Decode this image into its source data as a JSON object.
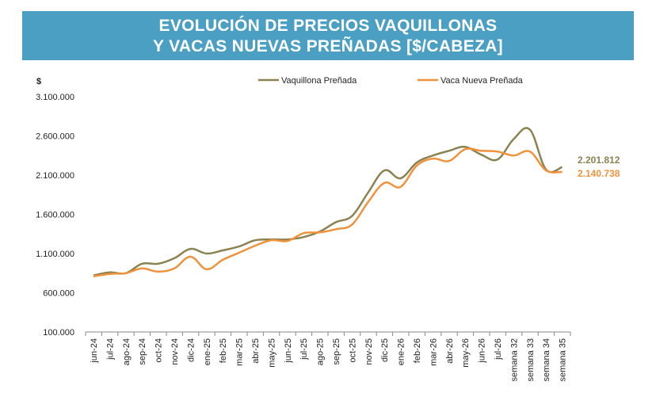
{
  "title_line1": "EVOLUCIÓN DE PRECIOS VAQUILLONAS",
  "title_line2": "Y VACAS NUEVAS PREÑADAS [$/CABEZA]",
  "chart_data": {
    "type": "line",
    "title": "EVOLUCIÓN DE PRECIOS VAQUILLONAS Y VACAS NUEVAS PREÑADAS [$/CABEZA]",
    "ylabel": "$",
    "xlabel": "",
    "ylim": [
      100000,
      3100000
    ],
    "yticks": [
      100000,
      600000,
      1100000,
      1600000,
      2100000,
      2600000,
      3100000
    ],
    "ytick_labels": [
      "100.000",
      "600.000",
      "1.100.000",
      "1.600.000",
      "2.100.000",
      "2.600.000",
      "3.100.000"
    ],
    "grid": false,
    "legend_position": "top",
    "categories": [
      "jun-24",
      "jul-24",
      "ago-24",
      "sep-24",
      "oct-24",
      "nov-24",
      "dic-24",
      "ene-25",
      "feb-25",
      "mar-25",
      "abr-25",
      "may-25",
      "jun-25",
      "jul-25",
      "ago-25",
      "sep-25",
      "oct-25",
      "nov-25",
      "dic-25",
      "ene-26",
      "feb-26",
      "mar-26",
      "abr-26",
      "may-26",
      "jun-26",
      "jul-26",
      "semana 32",
      "semana 33",
      "semana 34",
      "semana 35"
    ],
    "series": [
      {
        "name": "Vaquillona Preñada",
        "color": "#8a8250",
        "values": [
          820000,
          860000,
          850000,
          970000,
          970000,
          1040000,
          1160000,
          1100000,
          1140000,
          1190000,
          1270000,
          1280000,
          1280000,
          1310000,
          1380000,
          1500000,
          1580000,
          1880000,
          2160000,
          2060000,
          2260000,
          2350000,
          2410000,
          2460000,
          2360000,
          2300000,
          2560000,
          2680000,
          2170000,
          2201812
        ],
        "end_label": "2.201.812"
      },
      {
        "name": "Vaca Nueva Preñada",
        "color": "#f0923c",
        "values": [
          810000,
          840000,
          850000,
          910000,
          870000,
          910000,
          1060000,
          900000,
          1020000,
          1110000,
          1200000,
          1270000,
          1260000,
          1360000,
          1370000,
          1410000,
          1470000,
          1760000,
          2000000,
          1950000,
          2220000,
          2310000,
          2280000,
          2430000,
          2410000,
          2400000,
          2350000,
          2400000,
          2160000,
          2140738
        ],
        "end_label": "2.140.738"
      }
    ]
  }
}
